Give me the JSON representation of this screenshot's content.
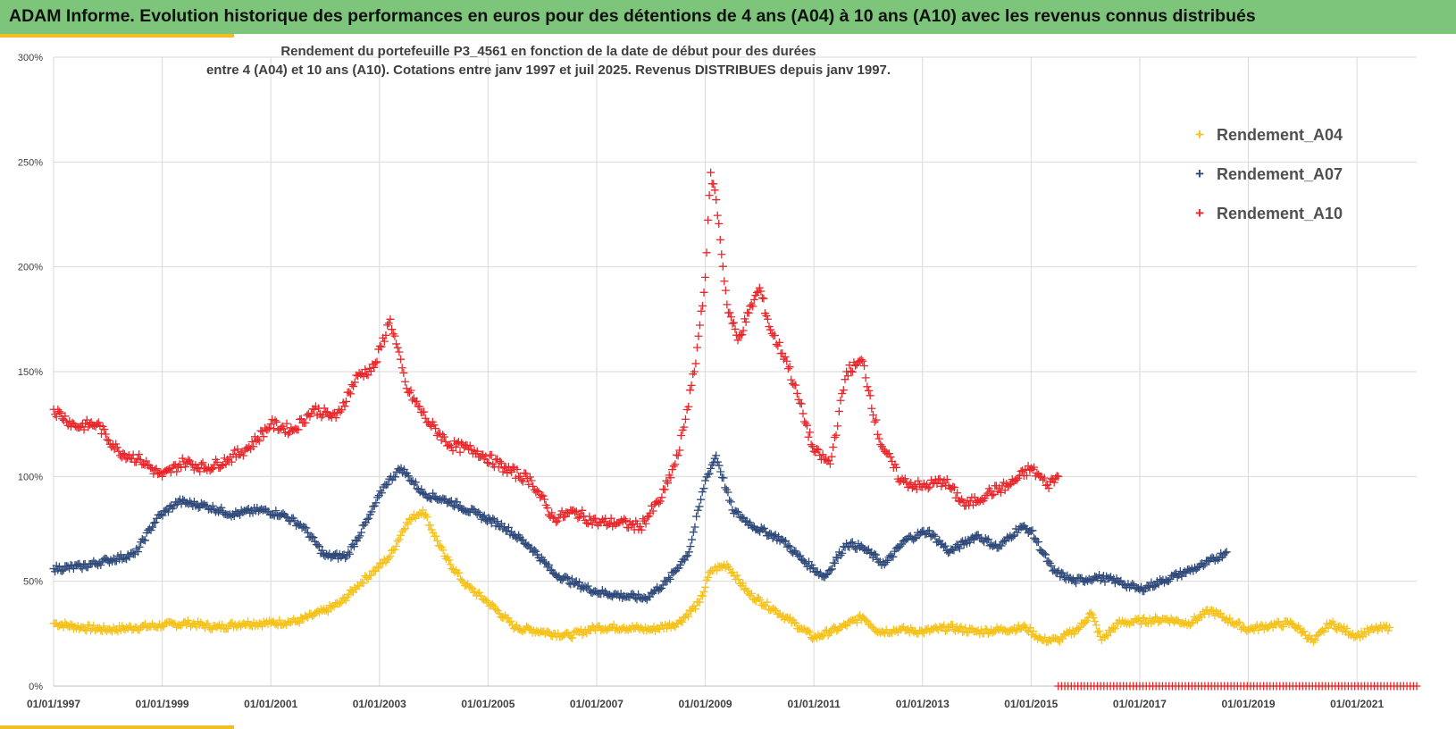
{
  "header": {
    "banner_text": "ADAM Informe. Evolution historique des performances en euros pour des détentions de 4 ans (A04) à 10 ans (A10) avec les revenus connus distribués"
  },
  "colors": {
    "banner": "#7dc57a",
    "accent": "#f2bf22",
    "a04": "#f5c21b",
    "a07": "#2f4a7a",
    "a10": "#e8262a",
    "grid": "#d9d9d9"
  },
  "chart_data": {
    "type": "scatter",
    "title_line1": "Rendement du portefeuille P3_4561 en fonction de la date de début pour des durées",
    "title_line2": "entre 4 (A04) et 10 ans (A10). Cotations  entre janv 1997 et juil 2025. Revenus DISTRIBUES depuis janv 1997.",
    "xlabel": "",
    "ylabel": "",
    "xlim": [
      1997.0,
      2022.1
    ],
    "ylim": [
      0,
      300
    ],
    "ytick_values": [
      0,
      50,
      100,
      150,
      200,
      250,
      300
    ],
    "ytick_labels": [
      "0%",
      "50%",
      "100%",
      "150%",
      "200%",
      "250%",
      "300%"
    ],
    "xtick_values": [
      1997,
      1999,
      2001,
      2003,
      2005,
      2007,
      2009,
      2011,
      2013,
      2015,
      2017,
      2019,
      2021
    ],
    "xtick_labels": [
      "01/01/1997",
      "01/01/1999",
      "01/01/2001",
      "01/01/2003",
      "01/01/2005",
      "01/01/2007",
      "01/01/2009",
      "01/01/2011",
      "01/01/2013",
      "01/01/2015",
      "01/01/2017",
      "01/01/2019",
      "01/01/2021"
    ],
    "grid": true,
    "legend_position": "right",
    "marker": "+",
    "series": [
      {
        "name": "Rendement_A04",
        "color": "#f5c21b",
        "x": [
          1997.0,
          1997.5,
          1998.0,
          1998.5,
          1999.0,
          1999.5,
          2000.0,
          2000.5,
          2001.0,
          2001.5,
          2002.0,
          2002.3,
          2002.6,
          2002.9,
          2003.2,
          2003.5,
          2003.8,
          2004.2,
          2004.6,
          2005.0,
          2005.5,
          2006.0,
          2006.5,
          2007.0,
          2007.5,
          2008.0,
          2008.5,
          2008.9,
          2009.1,
          2009.4,
          2009.8,
          2010.3,
          2010.8,
          2011.0,
          2011.5,
          2011.9,
          2012.2,
          2012.6,
          2013.0,
          2013.5,
          2014.0,
          2014.5,
          2014.9,
          2015.2,
          2015.5,
          2015.9,
          2016.1,
          2016.3,
          2016.6,
          2017.0,
          2017.5,
          2017.9,
          2018.3,
          2018.6,
          2019.0,
          2019.4,
          2019.8,
          2020.0,
          2020.2,
          2020.5,
          2021.0,
          2021.3,
          2021.6
        ],
        "y": [
          30,
          28,
          27,
          28,
          29,
          30,
          28,
          30,
          30,
          31,
          36,
          40,
          48,
          55,
          62,
          78,
          84,
          62,
          48,
          40,
          28,
          26,
          24,
          28,
          28,
          27,
          30,
          40,
          55,
          58,
          44,
          36,
          27,
          23,
          28,
          33,
          26,
          27,
          26,
          28,
          26,
          27,
          28,
          22,
          22,
          28,
          35,
          22,
          30,
          31,
          32,
          30,
          36,
          32,
          27,
          29,
          30,
          26,
          21,
          30,
          24,
          27,
          28
        ]
      },
      {
        "name": "Rendement_A07",
        "color": "#2f4a7a",
        "x": [
          1997.0,
          1997.5,
          1998.0,
          1998.5,
          1998.9,
          1999.3,
          1999.8,
          2000.3,
          2000.8,
          2001.2,
          2001.6,
          2002.0,
          2002.4,
          2002.8,
          2003.1,
          2003.4,
          2003.8,
          2004.3,
          2004.8,
          2005.3,
          2005.8,
          2006.2,
          2006.6,
          2007.0,
          2007.5,
          2007.9,
          2008.3,
          2008.7,
          2009.0,
          2009.2,
          2009.5,
          2009.9,
          2010.4,
          2010.8,
          2011.2,
          2011.6,
          2011.9,
          2012.3,
          2012.7,
          2013.1,
          2013.5,
          2014.0,
          2014.4,
          2014.8,
          2015.0,
          2015.4,
          2015.8,
          2016.2,
          2016.6,
          2017.0,
          2017.4,
          2017.8,
          2018.2,
          2018.6
        ],
        "y": [
          56,
          57,
          60,
          63,
          80,
          88,
          86,
          82,
          84,
          82,
          76,
          62,
          62,
          80,
          96,
          104,
          92,
          88,
          82,
          76,
          66,
          54,
          49,
          45,
          43,
          42,
          50,
          64,
          98,
          110,
          84,
          76,
          70,
          60,
          52,
          68,
          66,
          58,
          70,
          74,
          64,
          72,
          66,
          76,
          74,
          55,
          50,
          52,
          50,
          46,
          50,
          54,
          58,
          64
        ]
      },
      {
        "name": "Rendement_A10",
        "color": "#e8262a",
        "x": [
          1997.0,
          1997.4,
          1997.8,
          1998.2,
          1998.6,
          1999.0,
          1999.4,
          1999.8,
          2000.2,
          2000.6,
          2001.0,
          2001.4,
          2001.8,
          2002.2,
          2002.6,
          2002.9,
          2003.2,
          2003.5,
          2003.9,
          2004.3,
          2004.8,
          2005.3,
          2005.8,
          2006.2,
          2006.6,
          2007.0,
          2007.4,
          2007.8,
          2008.2,
          2008.5,
          2008.8,
          2009.0,
          2009.1,
          2009.2,
          2009.4,
          2009.6,
          2009.8,
          2010.0,
          2010.2,
          2010.5,
          2010.8,
          2011.0,
          2011.3,
          2011.6,
          2011.9,
          2012.2,
          2012.6,
          2013.0,
          2013.4,
          2013.8,
          2014.2,
          2014.6,
          2015.0,
          2015.3,
          2015.5
        ],
        "y": [
          132,
          124,
          125,
          112,
          108,
          100,
          107,
          104,
          108,
          114,
          125,
          122,
          132,
          128,
          148,
          152,
          175,
          142,
          126,
          115,
          112,
          104,
          98,
          80,
          83,
          78,
          78,
          76,
          90,
          110,
          150,
          195,
          245,
          232,
          182,
          165,
          178,
          190,
          170,
          155,
          130,
          112,
          106,
          150,
          155,
          118,
          98,
          95,
          98,
          86,
          92,
          96,
          104,
          96,
          100
        ]
      }
    ],
    "baseline_marker": {
      "color": "#e8262a",
      "x_start": 2015.5,
      "x_end": 2022.1,
      "y": 0
    }
  }
}
